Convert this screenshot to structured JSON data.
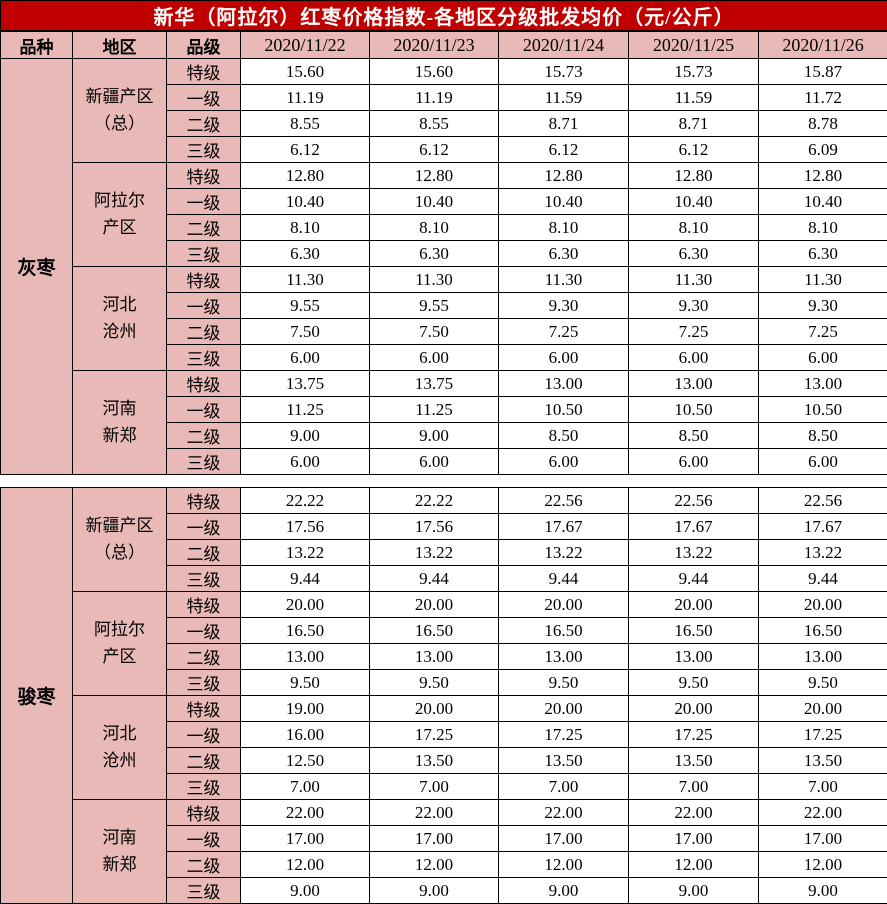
{
  "colors": {
    "title_bg": "#c00000",
    "title_text": "#ffffff",
    "label_bg_pink": "#e8b9b7",
    "cell_bg": "#ffffff",
    "border": "#000000"
  },
  "chart_data": {
    "type": "table",
    "title": "新华（阿拉尔）红枣价格指数-各地区分级批发均价（元/公斤）",
    "header": {
      "variety": "品种",
      "region": "地区",
      "grade": "品级",
      "dates": [
        "2020/11/22",
        "2020/11/23",
        "2020/11/24",
        "2020/11/25",
        "2020/11/26"
      ]
    },
    "grades": [
      "特级",
      "一级",
      "二级",
      "三级"
    ],
    "sections": [
      {
        "variety": "灰枣",
        "regions": [
          {
            "name": "新疆产区（总）",
            "lines": [
              "新疆产区",
              "（总）"
            ],
            "rows": [
              [
                "15.60",
                "15.60",
                "15.73",
                "15.73",
                "15.87"
              ],
              [
                "11.19",
                "11.19",
                "11.59",
                "11.59",
                "11.72"
              ],
              [
                "8.55",
                "8.55",
                "8.71",
                "8.71",
                "8.78"
              ],
              [
                "6.12",
                "6.12",
                "6.12",
                "6.12",
                "6.09"
              ]
            ]
          },
          {
            "name": "阿拉尔产区",
            "lines": [
              "阿拉尔",
              "产区"
            ],
            "rows": [
              [
                "12.80",
                "12.80",
                "12.80",
                "12.80",
                "12.80"
              ],
              [
                "10.40",
                "10.40",
                "10.40",
                "10.40",
                "10.40"
              ],
              [
                "8.10",
                "8.10",
                "8.10",
                "8.10",
                "8.10"
              ],
              [
                "6.30",
                "6.30",
                "6.30",
                "6.30",
                "6.30"
              ]
            ]
          },
          {
            "name": "河北沧州",
            "lines": [
              "河北",
              "沧州"
            ],
            "rows": [
              [
                "11.30",
                "11.30",
                "11.30",
                "11.30",
                "11.30"
              ],
              [
                "9.55",
                "9.55",
                "9.30",
                "9.30",
                "9.30"
              ],
              [
                "7.50",
                "7.50",
                "7.25",
                "7.25",
                "7.25"
              ],
              [
                "6.00",
                "6.00",
                "6.00",
                "6.00",
                "6.00"
              ]
            ]
          },
          {
            "name": "河南新郑",
            "lines": [
              "河南",
              "新郑"
            ],
            "rows": [
              [
                "13.75",
                "13.75",
                "13.00",
                "13.00",
                "13.00"
              ],
              [
                "11.25",
                "11.25",
                "10.50",
                "10.50",
                "10.50"
              ],
              [
                "9.00",
                "9.00",
                "8.50",
                "8.50",
                "8.50"
              ],
              [
                "6.00",
                "6.00",
                "6.00",
                "6.00",
                "6.00"
              ]
            ]
          }
        ]
      },
      {
        "variety": "骏枣",
        "regions": [
          {
            "name": "新疆产区（总）",
            "lines": [
              "新疆产区",
              "（总）"
            ],
            "rows": [
              [
                "22.22",
                "22.22",
                "22.56",
                "22.56",
                "22.56"
              ],
              [
                "17.56",
                "17.56",
                "17.67",
                "17.67",
                "17.67"
              ],
              [
                "13.22",
                "13.22",
                "13.22",
                "13.22",
                "13.22"
              ],
              [
                "9.44",
                "9.44",
                "9.44",
                "9.44",
                "9.44"
              ]
            ]
          },
          {
            "name": "阿拉尔产区",
            "lines": [
              "阿拉尔",
              "产区"
            ],
            "rows": [
              [
                "20.00",
                "20.00",
                "20.00",
                "20.00",
                "20.00"
              ],
              [
                "16.50",
                "16.50",
                "16.50",
                "16.50",
                "16.50"
              ],
              [
                "13.00",
                "13.00",
                "13.00",
                "13.00",
                "13.00"
              ],
              [
                "9.50",
                "9.50",
                "9.50",
                "9.50",
                "9.50"
              ]
            ]
          },
          {
            "name": "河北沧州",
            "lines": [
              "河北",
              "沧州"
            ],
            "rows": [
              [
                "19.00",
                "20.00",
                "20.00",
                "20.00",
                "20.00"
              ],
              [
                "16.00",
                "17.25",
                "17.25",
                "17.25",
                "17.25"
              ],
              [
                "12.50",
                "13.50",
                "13.50",
                "13.50",
                "13.50"
              ],
              [
                "7.00",
                "7.00",
                "7.00",
                "7.00",
                "7.00"
              ]
            ]
          },
          {
            "name": "河南新郑",
            "lines": [
              "河南",
              "新郑"
            ],
            "rows": [
              [
                "22.00",
                "22.00",
                "22.00",
                "22.00",
                "22.00"
              ],
              [
                "17.00",
                "17.00",
                "17.00",
                "17.00",
                "17.00"
              ],
              [
                "12.00",
                "12.00",
                "12.00",
                "12.00",
                "12.00"
              ],
              [
                "9.00",
                "9.00",
                "9.00",
                "9.00",
                "9.00"
              ]
            ]
          }
        ]
      }
    ]
  }
}
